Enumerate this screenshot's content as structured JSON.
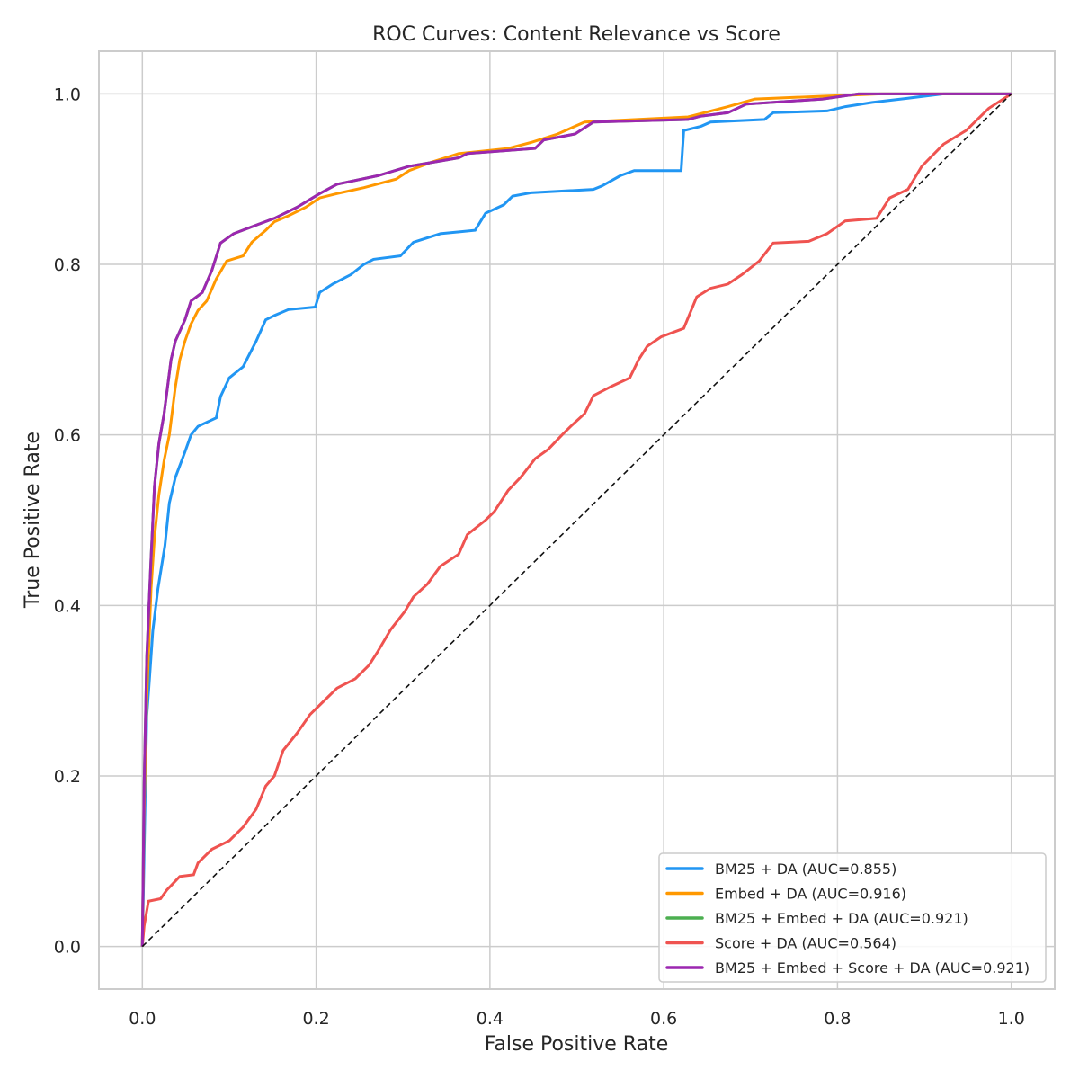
{
  "chart_data": {
    "type": "line",
    "title": "ROC Curves: Content Relevance vs Score",
    "xlabel": "False Positive Rate",
    "ylabel": "True Positive Rate",
    "xlim": [
      -0.05,
      1.05
    ],
    "ylim": [
      -0.05,
      1.05
    ],
    "xticks": [
      "0.0",
      "0.2",
      "0.4",
      "0.6",
      "0.8",
      "1.0"
    ],
    "yticks": [
      "0.0",
      "0.2",
      "0.4",
      "0.6",
      "0.8",
      "1.0"
    ],
    "grid": true,
    "legend_position": "lower-right",
    "diagonal": {
      "x": [
        0,
        1
      ],
      "y": [
        0,
        1
      ],
      "color": "#111111",
      "style": "dashed"
    },
    "series": [
      {
        "name": "BM25 + DA (AUC=0.855)",
        "color": "#2196F3",
        "x": [
          0,
          0.002,
          0.005,
          0.008,
          0.012,
          0.018,
          0.026,
          0.031,
          0.038,
          0.049,
          0.056,
          0.064,
          0.085,
          0.09,
          0.1,
          0.116,
          0.121,
          0.131,
          0.142,
          0.152,
          0.168,
          0.199,
          0.204,
          0.219,
          0.24,
          0.255,
          0.266,
          0.297,
          0.312,
          0.343,
          0.383,
          0.395,
          0.416,
          0.426,
          0.447,
          0.519,
          0.529,
          0.55,
          0.566,
          0.62,
          0.623,
          0.643,
          0.654,
          0.716,
          0.726,
          0.788,
          0.809,
          0.84,
          0.881,
          0.922,
          1.0
        ],
        "y": [
          0,
          0.11,
          0.27,
          0.31,
          0.37,
          0.42,
          0.47,
          0.52,
          0.55,
          0.58,
          0.6,
          0.61,
          0.62,
          0.645,
          0.667,
          0.68,
          0.69,
          0.71,
          0.735,
          0.74,
          0.747,
          0.75,
          0.767,
          0.777,
          0.788,
          0.8,
          0.806,
          0.81,
          0.826,
          0.836,
          0.84,
          0.86,
          0.87,
          0.88,
          0.884,
          0.888,
          0.892,
          0.904,
          0.91,
          0.91,
          0.957,
          0.962,
          0.967,
          0.97,
          0.978,
          0.98,
          0.985,
          0.99,
          0.995,
          1.0,
          1.0
        ]
      },
      {
        "name": "Embed + DA (AUC=0.916)",
        "color": "#FF9800",
        "x": [
          0,
          0.002,
          0.005,
          0.01,
          0.014,
          0.019,
          0.025,
          0.031,
          0.038,
          0.043,
          0.049,
          0.056,
          0.064,
          0.074,
          0.085,
          0.097,
          0.116,
          0.126,
          0.142,
          0.152,
          0.168,
          0.188,
          0.204,
          0.224,
          0.255,
          0.292,
          0.307,
          0.333,
          0.364,
          0.421,
          0.447,
          0.478,
          0.509,
          0.628,
          0.674,
          0.705,
          0.85,
          1.0
        ],
        "y": [
          0,
          0.16,
          0.29,
          0.42,
          0.48,
          0.53,
          0.57,
          0.6,
          0.656,
          0.688,
          0.71,
          0.73,
          0.746,
          0.757,
          0.783,
          0.804,
          0.81,
          0.826,
          0.84,
          0.85,
          0.857,
          0.867,
          0.878,
          0.883,
          0.89,
          0.9,
          0.91,
          0.92,
          0.93,
          0.936,
          0.943,
          0.953,
          0.967,
          0.973,
          0.985,
          0.994,
          1.0,
          1.0
        ]
      },
      {
        "name": "BM25 + Embed + DA (AUC=0.921)",
        "color": "#4CAF50",
        "x": [
          0,
          0.002,
          0.005,
          0.01,
          0.014,
          0.019,
          0.025,
          0.029,
          0.033,
          0.038,
          0.049,
          0.056,
          0.069,
          0.08,
          0.09,
          0.105,
          0.131,
          0.152,
          0.178,
          0.204,
          0.224,
          0.271,
          0.307,
          0.364,
          0.374,
          0.452,
          0.462,
          0.498,
          0.519,
          0.628,
          0.643,
          0.674,
          0.695,
          0.783,
          0.824,
          1.0
        ],
        "y": [
          0,
          0.19,
          0.34,
          0.456,
          0.54,
          0.59,
          0.625,
          0.656,
          0.688,
          0.71,
          0.735,
          0.757,
          0.767,
          0.793,
          0.825,
          0.836,
          0.846,
          0.854,
          0.867,
          0.883,
          0.894,
          0.904,
          0.915,
          0.925,
          0.93,
          0.936,
          0.946,
          0.953,
          0.967,
          0.97,
          0.974,
          0.978,
          0.988,
          0.994,
          1.0,
          1.0
        ]
      },
      {
        "name": "Score + DA (AUC=0.564)",
        "color": "#EF5350",
        "x": [
          0,
          0.002,
          0.007,
          0.021,
          0.028,
          0.043,
          0.059,
          0.064,
          0.08,
          0.1,
          0.116,
          0.131,
          0.142,
          0.152,
          0.162,
          0.178,
          0.193,
          0.209,
          0.224,
          0.245,
          0.261,
          0.271,
          0.286,
          0.302,
          0.312,
          0.328,
          0.343,
          0.364,
          0.374,
          0.395,
          0.405,
          0.421,
          0.436,
          0.452,
          0.467,
          0.483,
          0.493,
          0.509,
          0.519,
          0.54,
          0.561,
          0.571,
          0.581,
          0.597,
          0.623,
          0.638,
          0.654,
          0.674,
          0.69,
          0.71,
          0.726,
          0.767,
          0.788,
          0.809,
          0.845,
          0.86,
          0.881,
          0.897,
          0.922,
          0.948,
          0.974,
          1.0
        ],
        "y": [
          0,
          0.024,
          0.053,
          0.056,
          0.066,
          0.082,
          0.084,
          0.098,
          0.114,
          0.124,
          0.14,
          0.161,
          0.188,
          0.2,
          0.23,
          0.25,
          0.272,
          0.288,
          0.303,
          0.314,
          0.33,
          0.346,
          0.372,
          0.393,
          0.41,
          0.425,
          0.446,
          0.46,
          0.483,
          0.5,
          0.51,
          0.535,
          0.551,
          0.572,
          0.583,
          0.6,
          0.61,
          0.625,
          0.646,
          0.657,
          0.667,
          0.688,
          0.704,
          0.715,
          0.725,
          0.762,
          0.772,
          0.777,
          0.788,
          0.804,
          0.825,
          0.827,
          0.836,
          0.851,
          0.854,
          0.878,
          0.888,
          0.915,
          0.941,
          0.957,
          0.983,
          1.0
        ]
      },
      {
        "name": "BM25 + Embed + Score + DA (AUC=0.921)",
        "color": "#9C27B0",
        "x": [
          0,
          0.002,
          0.005,
          0.01,
          0.014,
          0.019,
          0.025,
          0.029,
          0.033,
          0.038,
          0.049,
          0.056,
          0.069,
          0.08,
          0.09,
          0.105,
          0.131,
          0.152,
          0.178,
          0.204,
          0.224,
          0.271,
          0.307,
          0.364,
          0.374,
          0.452,
          0.462,
          0.498,
          0.519,
          0.628,
          0.643,
          0.674,
          0.695,
          0.783,
          0.824,
          1.0
        ],
        "y": [
          0,
          0.19,
          0.34,
          0.456,
          0.54,
          0.59,
          0.625,
          0.656,
          0.688,
          0.71,
          0.735,
          0.757,
          0.767,
          0.793,
          0.825,
          0.836,
          0.846,
          0.854,
          0.867,
          0.883,
          0.894,
          0.904,
          0.915,
          0.925,
          0.93,
          0.936,
          0.946,
          0.953,
          0.967,
          0.97,
          0.974,
          0.978,
          0.988,
          0.994,
          1.0,
          1.0
        ]
      }
    ]
  }
}
